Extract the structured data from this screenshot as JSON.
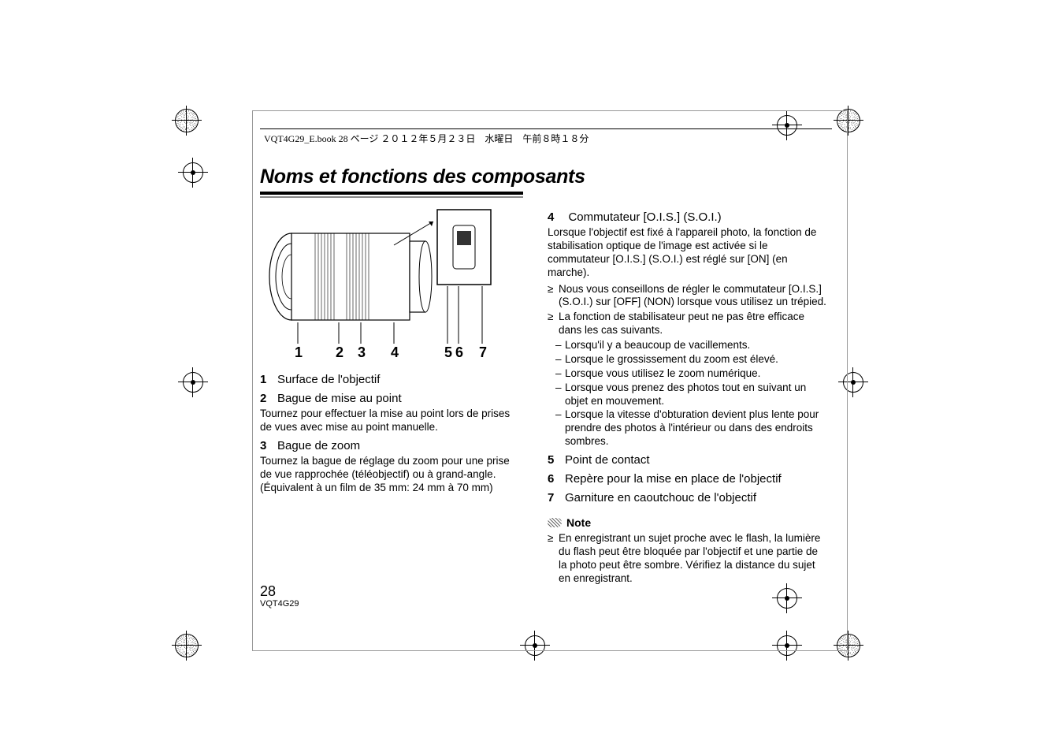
{
  "header": "VQT4G29_E.book  28 ページ  ２０１２年５月２３日　水曜日　午前８時１８分",
  "title": "Noms et fonctions des composants",
  "figure": {
    "callouts": [
      "1",
      "2",
      "3",
      "4",
      "5",
      "6",
      "7"
    ]
  },
  "left_items": [
    {
      "num": "1",
      "label": "Surface de l'objectif",
      "desc": ""
    },
    {
      "num": "2",
      "label": "Bague de mise au point",
      "desc": "Tournez pour effectuer la mise au point lors de prises de vues avec mise au point manuelle."
    },
    {
      "num": "3",
      "label": "Bague de zoom",
      "desc": "Tournez la bague de réglage du zoom pour une prise de vue rapprochée (téléobjectif) ou à grand-angle. (Équivalent à un film de 35 mm: 24 mm à 70 mm)"
    }
  ],
  "right_head": {
    "num": "4",
    "label": "Commutateur [O.I.S.] (S.O.I.)",
    "desc": "Lorsque l'objectif est fixé à l'appareil photo, la fonction de stabilisation optique de l'image est activée si le commutateur [O.I.S.] (S.O.I.) est réglé sur [ON] (en marche)."
  },
  "right_bullets": [
    "Nous vous conseillons de régler le commutateur [O.I.S.] (S.O.I.) sur [OFF] (NON) lorsque vous utilisez un trépied.",
    "La fonction de stabilisateur peut ne pas être efficace dans les cas suivants."
  ],
  "right_dashes": [
    "Lorsqu'il y a beaucoup de vacillements.",
    "Lorsque le grossissement du zoom est élevé.",
    "Lorsque vous utilisez le zoom numérique.",
    "Lorsque vous prenez des photos tout en suivant un objet en mouvement.",
    "Lorsque la vitesse d'obturation devient plus lente pour prendre des photos à l'intérieur ou dans des endroits sombres."
  ],
  "right_items_simple": [
    {
      "num": "5",
      "label": "Point de contact"
    },
    {
      "num": "6",
      "label": "Repère pour la mise en place de l'objectif"
    },
    {
      "num": "7",
      "label": "Garniture en caoutchouc de l'objectif"
    }
  ],
  "note": {
    "label": "Note",
    "text": "En enregistrant un sujet proche avec le flash, la lumière du flash peut être bloquée par l'objectif et une partie de la photo peut être sombre. Vérifiez la distance du sujet en enregistrant."
  },
  "page_number": "28",
  "doc_code": "VQT4G29",
  "style": {
    "title_fontsize": 25,
    "body_fontsize": 13.5,
    "label_fontsize": 15,
    "text_color": "#000000",
    "background": "#ffffff",
    "rule_color": "#000000"
  }
}
